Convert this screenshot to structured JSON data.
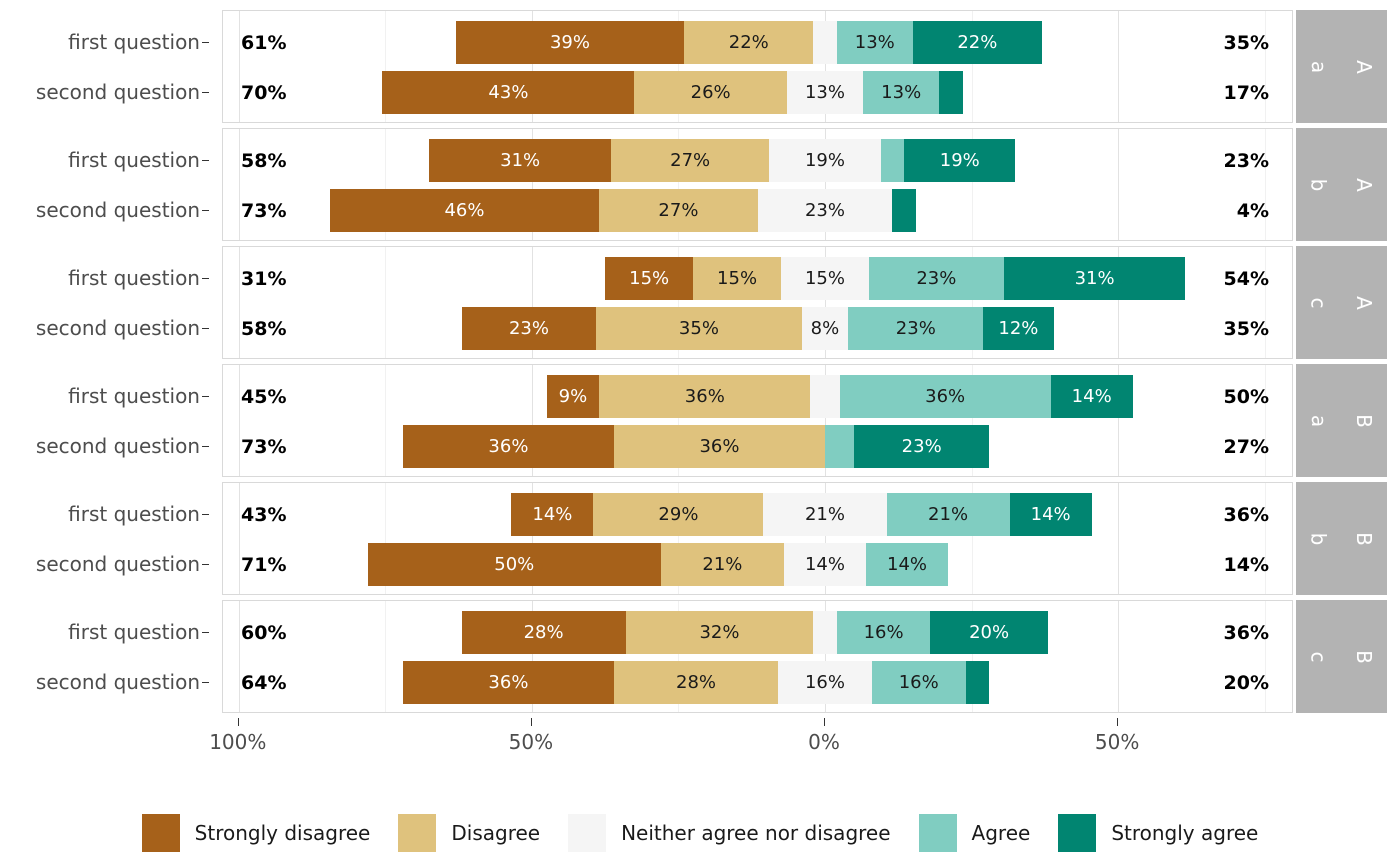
{
  "chart_data": {
    "type": "bar",
    "variant": "diverging-stacked-likert-faceted",
    "title": "",
    "categories": [
      "Strongly disagree",
      "Disagree",
      "Neither agree nor disagree",
      "Agree",
      "Strongly agree"
    ],
    "colors": [
      "#a6611a",
      "#dfc27d",
      "#f5f5f5",
      "#80cdc1",
      "#018571"
    ],
    "segment_label_colors": [
      "#ffffff",
      "#1a1a1a",
      "#1a1a1a",
      "#1a1a1a",
      "#ffffff"
    ],
    "layout_hints": {
      "neither_centered_on_zero": true,
      "grid": "major 50% steps, minor 25% steps",
      "legend_position": "bottom",
      "facet_strip_color": "#b3b3b3",
      "x_range_pct": [
        -102.7,
        80
      ]
    },
    "x_axis": {
      "major_ticks": [
        {
          "pos": -100,
          "label": "100%"
        },
        {
          "pos": -50,
          "label": "50%"
        },
        {
          "pos": 0,
          "label": "0%"
        },
        {
          "pos": 50,
          "label": "50%"
        }
      ],
      "minor_ticks": [
        -75,
        -25,
        25,
        75
      ]
    },
    "panels": [
      {
        "facet_outer": "A",
        "facet_inner": "a",
        "rows": [
          {
            "label": "first question",
            "left_total": "61%",
            "right_total": "35%",
            "values": [
              39,
              22,
              4,
              13,
              22
            ],
            "value_labels": [
              "39%",
              "22%",
              "",
              "13%",
              "22%"
            ]
          },
          {
            "label": "second question",
            "left_total": "70%",
            "right_total": "17%",
            "values": [
              43,
              26,
              13,
              13,
              4
            ],
            "value_labels": [
              "43%",
              "26%",
              "13%",
              "13%",
              ""
            ]
          }
        ]
      },
      {
        "facet_outer": "A",
        "facet_inner": "b",
        "rows": [
          {
            "label": "first question",
            "left_total": "58%",
            "right_total": "23%",
            "values": [
              31,
              27,
              19,
              4,
              19
            ],
            "value_labels": [
              "31%",
              "27%",
              "19%",
              "",
              "19%"
            ]
          },
          {
            "label": "second question",
            "left_total": "73%",
            "right_total": "4%",
            "values": [
              46,
              27,
              23,
              0,
              4
            ],
            "value_labels": [
              "46%",
              "27%",
              "23%",
              "",
              ""
            ]
          }
        ]
      },
      {
        "facet_outer": "A",
        "facet_inner": "c",
        "rows": [
          {
            "label": "first question",
            "left_total": "31%",
            "right_total": "54%",
            "values": [
              15,
              15,
              15,
              23,
              31
            ],
            "value_labels": [
              "15%",
              "15%",
              "15%",
              "23%",
              "31%"
            ]
          },
          {
            "label": "second question",
            "left_total": "58%",
            "right_total": "35%",
            "values": [
              23,
              35,
              8,
              23,
              12
            ],
            "value_labels": [
              "23%",
              "35%",
              "8%",
              "23%",
              "12%"
            ]
          }
        ]
      },
      {
        "facet_outer": "B",
        "facet_inner": "a",
        "rows": [
          {
            "label": "first question",
            "left_total": "45%",
            "right_total": "50%",
            "values": [
              9,
              36,
              5,
              36,
              14
            ],
            "value_labels": [
              "9%",
              "36%",
              "",
              "36%",
              "14%"
            ]
          },
          {
            "label": "second question",
            "left_total": "73%",
            "right_total": "27%",
            "values": [
              36,
              36,
              0,
              5,
              23
            ],
            "value_labels": [
              "36%",
              "36%",
              "",
              "",
              "23%"
            ]
          }
        ]
      },
      {
        "facet_outer": "B",
        "facet_inner": "b",
        "rows": [
          {
            "label": "first question",
            "left_total": "43%",
            "right_total": "36%",
            "values": [
              14,
              29,
              21,
              21,
              14
            ],
            "value_labels": [
              "14%",
              "29%",
              "21%",
              "21%",
              "14%"
            ]
          },
          {
            "label": "second question",
            "left_total": "71%",
            "right_total": "14%",
            "values": [
              50,
              21,
              14,
              14,
              0
            ],
            "value_labels": [
              "50%",
              "21%",
              "14%",
              "14%",
              ""
            ]
          }
        ]
      },
      {
        "facet_outer": "B",
        "facet_inner": "c",
        "rows": [
          {
            "label": "first question",
            "left_total": "60%",
            "right_total": "36%",
            "values": [
              28,
              32,
              4,
              16,
              20
            ],
            "value_labels": [
              "28%",
              "32%",
              "",
              "16%",
              "20%"
            ]
          },
          {
            "label": "second question",
            "left_total": "64%",
            "right_total": "20%",
            "values": [
              36,
              28,
              16,
              16,
              4
            ],
            "value_labels": [
              "36%",
              "28%",
              "16%",
              "16%",
              ""
            ]
          }
        ]
      }
    ],
    "legend": {
      "entries": [
        {
          "label": "Strongly disagree",
          "color": "#a6611a"
        },
        {
          "label": "Disagree",
          "color": "#dfc27d"
        },
        {
          "label": "Neither agree nor disagree",
          "color": "#f5f5f5"
        },
        {
          "label": "Agree",
          "color": "#80cdc1"
        },
        {
          "label": "Strongly agree",
          "color": "#018571"
        }
      ]
    }
  }
}
